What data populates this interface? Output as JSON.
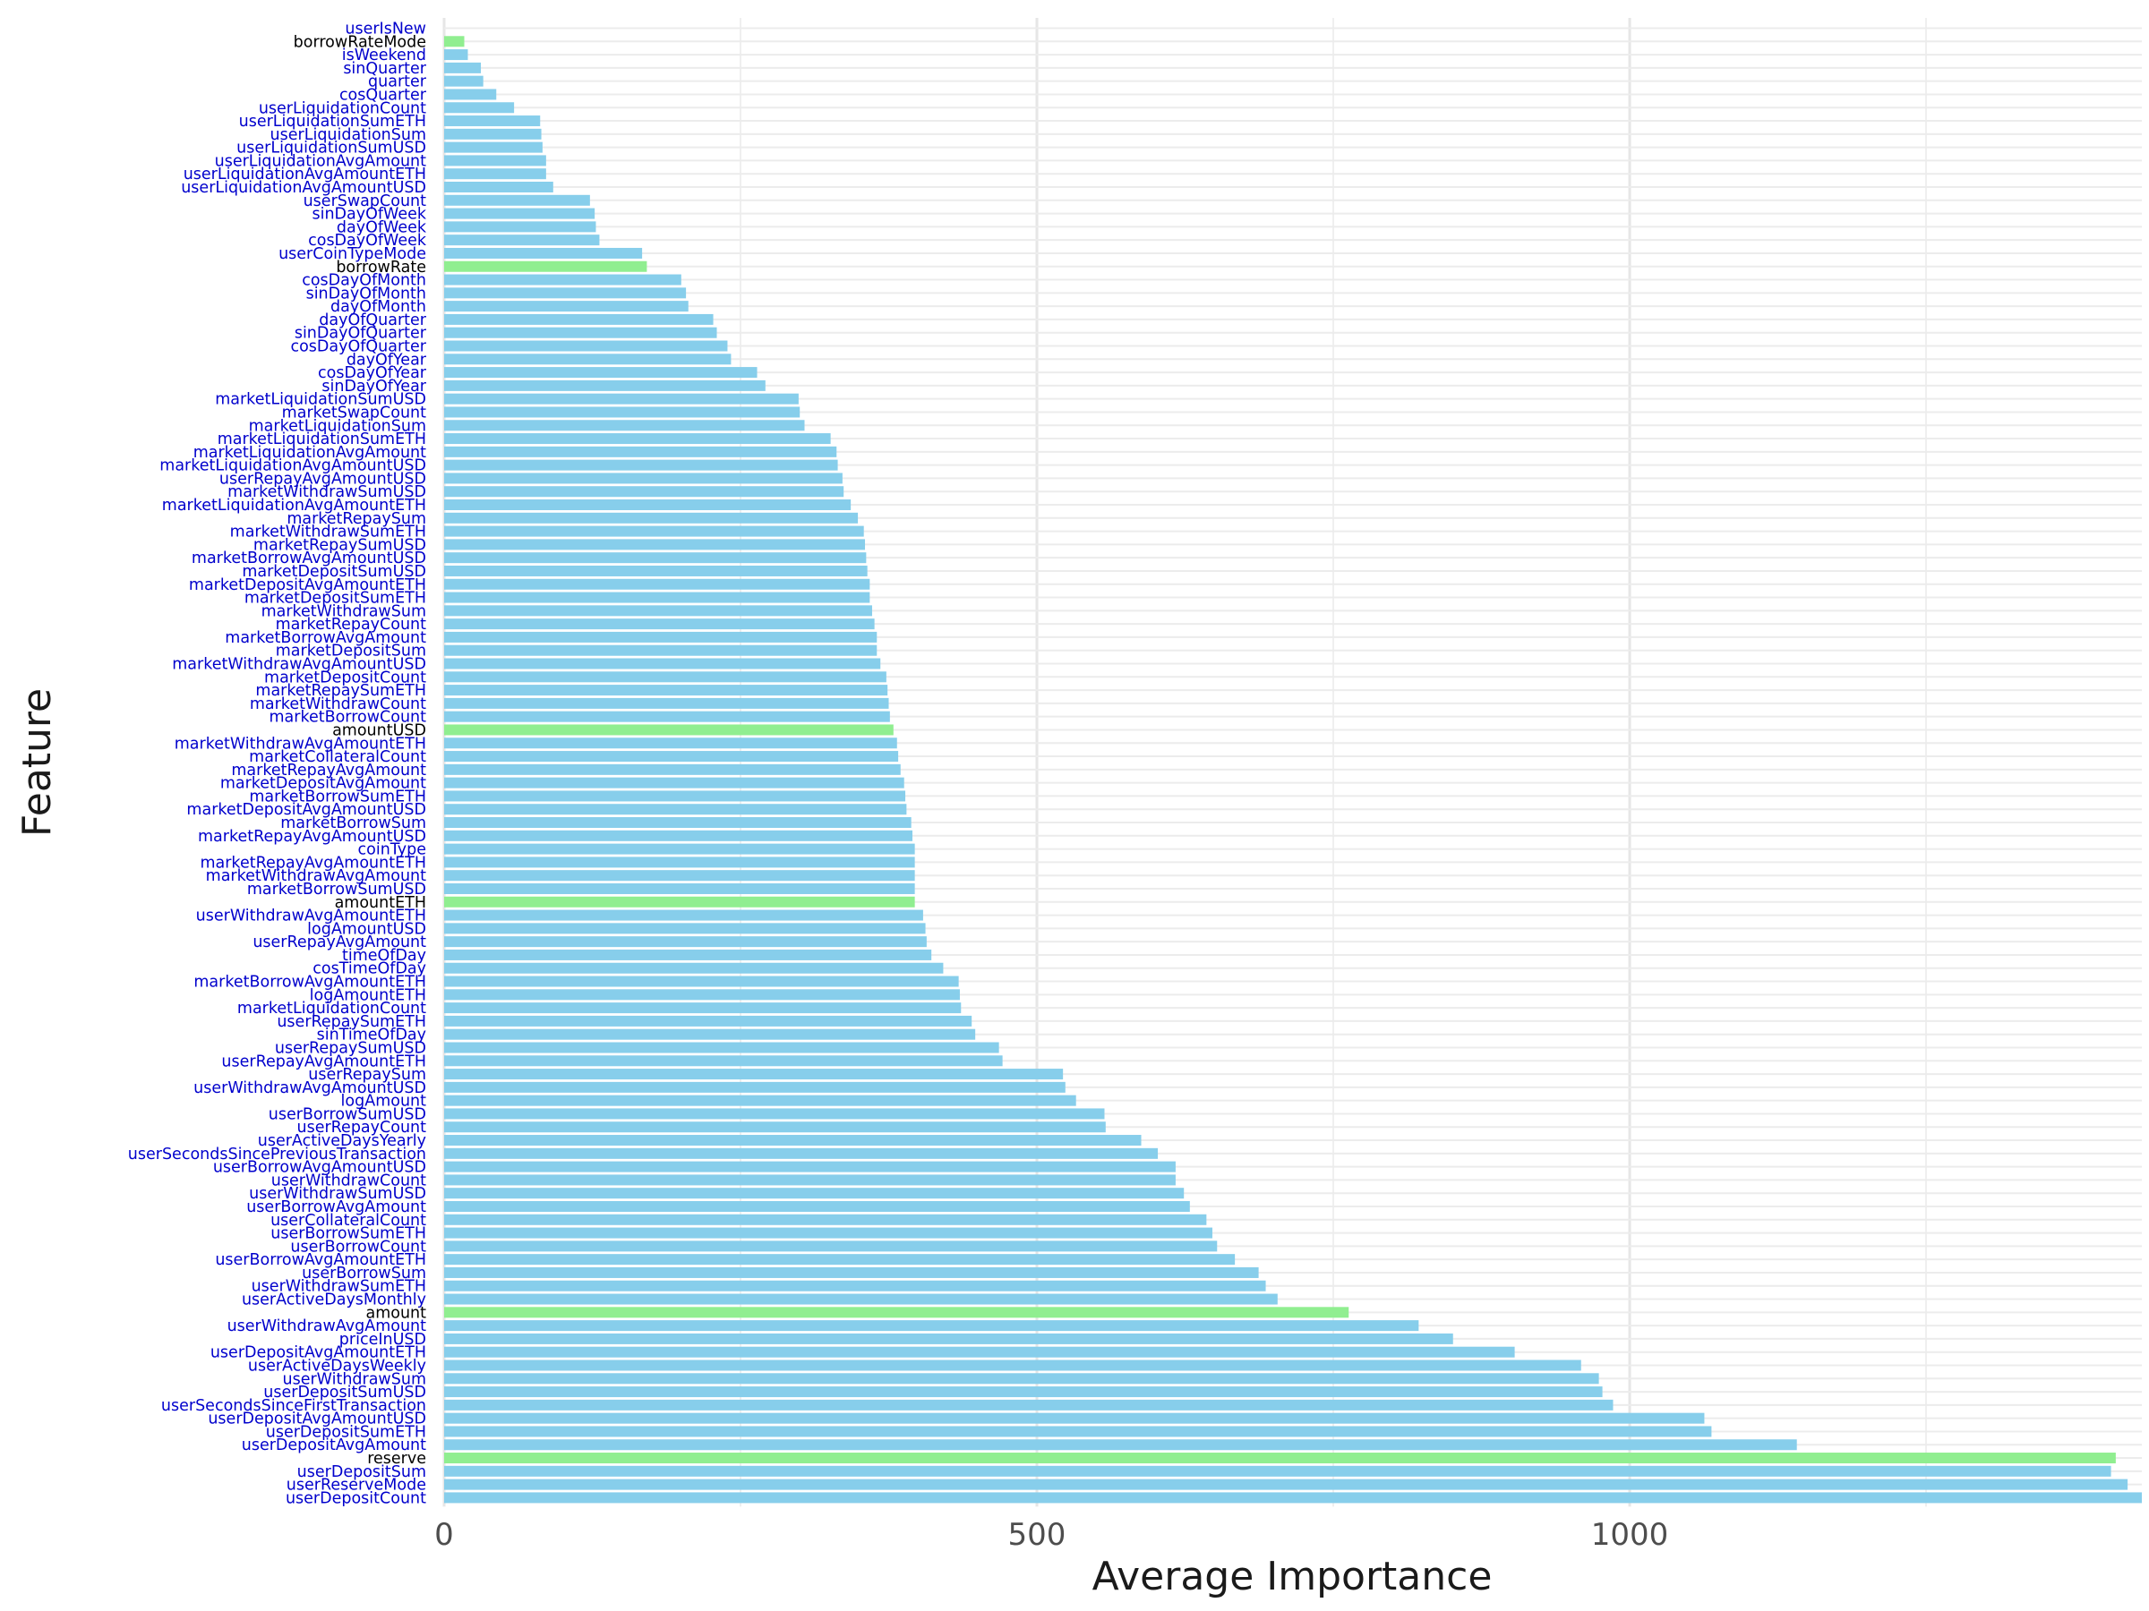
{
  "chart_data": {
    "type": "bar",
    "orientation": "horizontal",
    "xlabel": "Average Importance",
    "ylabel": "Feature",
    "xlim": [
      0,
      1432
    ],
    "xticks": [
      0,
      500,
      1000
    ],
    "grid": true,
    "colors": {
      "default": "#87CEEB",
      "highlight": "#90EE90",
      "label_default": "#0000CC",
      "label_highlight": "#000000"
    },
    "bars": [
      {
        "label": "userIsNew",
        "value": 0,
        "highlight": false
      },
      {
        "label": "borrowRateMode",
        "value": 17,
        "highlight": true
      },
      {
        "label": "isWeekend",
        "value": 20,
        "highlight": false
      },
      {
        "label": "sinQuarter",
        "value": 31,
        "highlight": false
      },
      {
        "label": "quarter",
        "value": 33,
        "highlight": false
      },
      {
        "label": "cosQuarter",
        "value": 44,
        "highlight": false
      },
      {
        "label": "userLiquidationCount",
        "value": 59,
        "highlight": false
      },
      {
        "label": "userLiquidationSumETH",
        "value": 81,
        "highlight": false
      },
      {
        "label": "userLiquidationSum",
        "value": 82,
        "highlight": false
      },
      {
        "label": "userLiquidationSumUSD",
        "value": 83,
        "highlight": false
      },
      {
        "label": "userLiquidationAvgAmount",
        "value": 86,
        "highlight": false
      },
      {
        "label": "userLiquidationAvgAmountETH",
        "value": 86,
        "highlight": false
      },
      {
        "label": "userLiquidationAvgAmountUSD",
        "value": 92,
        "highlight": false
      },
      {
        "label": "userSwapCount",
        "value": 123,
        "highlight": false
      },
      {
        "label": "sinDayOfWeek",
        "value": 127,
        "highlight": false
      },
      {
        "label": "dayOfWeek",
        "value": 128,
        "highlight": false
      },
      {
        "label": "cosDayOfWeek",
        "value": 131,
        "highlight": false
      },
      {
        "label": "userCoinTypeMode",
        "value": 167,
        "highlight": false
      },
      {
        "label": "borrowRate",
        "value": 171,
        "highlight": true
      },
      {
        "label": "cosDayOfMonth",
        "value": 200,
        "highlight": false
      },
      {
        "label": "sinDayOfMonth",
        "value": 204,
        "highlight": false
      },
      {
        "label": "dayOfMonth",
        "value": 206,
        "highlight": false
      },
      {
        "label": "dayOfQuarter",
        "value": 227,
        "highlight": false
      },
      {
        "label": "sinDayOfQuarter",
        "value": 230,
        "highlight": false
      },
      {
        "label": "cosDayOfQuarter",
        "value": 239,
        "highlight": false
      },
      {
        "label": "dayOfYear",
        "value": 242,
        "highlight": false
      },
      {
        "label": "cosDayOfYear",
        "value": 264,
        "highlight": false
      },
      {
        "label": "sinDayOfYear",
        "value": 271,
        "highlight": false
      },
      {
        "label": "marketLiquidationSumUSD",
        "value": 299,
        "highlight": false
      },
      {
        "label": "marketSwapCount",
        "value": 300,
        "highlight": false
      },
      {
        "label": "marketLiquidationSum",
        "value": 304,
        "highlight": false
      },
      {
        "label": "marketLiquidationSumETH",
        "value": 326,
        "highlight": false
      },
      {
        "label": "marketLiquidationAvgAmount",
        "value": 331,
        "highlight": false
      },
      {
        "label": "marketLiquidationAvgAmountUSD",
        "value": 332,
        "highlight": false
      },
      {
        "label": "userRepayAvgAmountUSD",
        "value": 336,
        "highlight": false
      },
      {
        "label": "marketWithdrawSumUSD",
        "value": 337,
        "highlight": false
      },
      {
        "label": "marketLiquidationAvgAmountETH",
        "value": 343,
        "highlight": false
      },
      {
        "label": "marketRepaySum",
        "value": 349,
        "highlight": false
      },
      {
        "label": "marketWithdrawSumETH",
        "value": 354,
        "highlight": false
      },
      {
        "label": "marketRepaySumUSD",
        "value": 355,
        "highlight": false
      },
      {
        "label": "marketBorrowAvgAmountUSD",
        "value": 356,
        "highlight": false
      },
      {
        "label": "marketDepositSumUSD",
        "value": 357,
        "highlight": false
      },
      {
        "label": "marketDepositAvgAmountETH",
        "value": 359,
        "highlight": false
      },
      {
        "label": "marketDepositSumETH",
        "value": 359,
        "highlight": false
      },
      {
        "label": "marketWithdrawSum",
        "value": 361,
        "highlight": false
      },
      {
        "label": "marketRepayCount",
        "value": 363,
        "highlight": false
      },
      {
        "label": "marketBorrowAvgAmount",
        "value": 365,
        "highlight": false
      },
      {
        "label": "marketDepositSum",
        "value": 365,
        "highlight": false
      },
      {
        "label": "marketWithdrawAvgAmountUSD",
        "value": 368,
        "highlight": false
      },
      {
        "label": "marketDepositCount",
        "value": 373,
        "highlight": false
      },
      {
        "label": "marketRepaySumETH",
        "value": 374,
        "highlight": false
      },
      {
        "label": "marketWithdrawCount",
        "value": 375,
        "highlight": false
      },
      {
        "label": "marketBorrowCount",
        "value": 376,
        "highlight": false
      },
      {
        "label": "amountUSD",
        "value": 379,
        "highlight": true
      },
      {
        "label": "marketWithdrawAvgAmountETH",
        "value": 382,
        "highlight": false
      },
      {
        "label": "marketCollateralCount",
        "value": 383,
        "highlight": false
      },
      {
        "label": "marketRepayAvgAmount",
        "value": 385,
        "highlight": false
      },
      {
        "label": "marketDepositAvgAmount",
        "value": 388,
        "highlight": false
      },
      {
        "label": "marketBorrowSumETH",
        "value": 389,
        "highlight": false
      },
      {
        "label": "marketDepositAvgAmountUSD",
        "value": 390,
        "highlight": false
      },
      {
        "label": "marketBorrowSum",
        "value": 394,
        "highlight": false
      },
      {
        "label": "marketRepayAvgAmountUSD",
        "value": 395,
        "highlight": false
      },
      {
        "label": "coinType",
        "value": 397,
        "highlight": false
      },
      {
        "label": "marketRepayAvgAmountETH",
        "value": 397,
        "highlight": false
      },
      {
        "label": "marketWithdrawAvgAmount",
        "value": 397,
        "highlight": false
      },
      {
        "label": "marketBorrowSumUSD",
        "value": 397,
        "highlight": false
      },
      {
        "label": "amountETH",
        "value": 397,
        "highlight": true
      },
      {
        "label": "userWithdrawAvgAmountETH",
        "value": 404,
        "highlight": false
      },
      {
        "label": "logAmountUSD",
        "value": 406,
        "highlight": false
      },
      {
        "label": "userRepayAvgAmount",
        "value": 407,
        "highlight": false
      },
      {
        "label": "timeOfDay",
        "value": 411,
        "highlight": false
      },
      {
        "label": "cosTimeOfDay",
        "value": 421,
        "highlight": false
      },
      {
        "label": "marketBorrowAvgAmountETH",
        "value": 434,
        "highlight": false
      },
      {
        "label": "logAmountETH",
        "value": 435,
        "highlight": false
      },
      {
        "label": "marketLiquidationCount",
        "value": 436,
        "highlight": false
      },
      {
        "label": "userRepaySumETH",
        "value": 445,
        "highlight": false
      },
      {
        "label": "sinTimeOfDay",
        "value": 448,
        "highlight": false
      },
      {
        "label": "userRepaySumUSD",
        "value": 468,
        "highlight": false
      },
      {
        "label": "userRepayAvgAmountETH",
        "value": 471,
        "highlight": false
      },
      {
        "label": "userRepaySum",
        "value": 522,
        "highlight": false
      },
      {
        "label": "userWithdrawAvgAmountUSD",
        "value": 524,
        "highlight": false
      },
      {
        "label": "logAmount",
        "value": 533,
        "highlight": false
      },
      {
        "label": "userBorrowSumUSD",
        "value": 557,
        "highlight": false
      },
      {
        "label": "userRepayCount",
        "value": 558,
        "highlight": false
      },
      {
        "label": "userActiveDaysYearly",
        "value": 588,
        "highlight": false
      },
      {
        "label": "userSecondsSincePreviousTransaction",
        "value": 602,
        "highlight": false
      },
      {
        "label": "userBorrowAvgAmountUSD",
        "value": 617,
        "highlight": false
      },
      {
        "label": "userWithdrawCount",
        "value": 617,
        "highlight": false
      },
      {
        "label": "userWithdrawSumUSD",
        "value": 624,
        "highlight": false
      },
      {
        "label": "userBorrowAvgAmount",
        "value": 629,
        "highlight": false
      },
      {
        "label": "userCollateralCount",
        "value": 643,
        "highlight": false
      },
      {
        "label": "userBorrowSumETH",
        "value": 648,
        "highlight": false
      },
      {
        "label": "userBorrowCount",
        "value": 652,
        "highlight": false
      },
      {
        "label": "userBorrowAvgAmountETH",
        "value": 667,
        "highlight": false
      },
      {
        "label": "userBorrowSum",
        "value": 687,
        "highlight": false
      },
      {
        "label": "userWithdrawSumETH",
        "value": 693,
        "highlight": false
      },
      {
        "label": "userActiveDaysMonthly",
        "value": 703,
        "highlight": false
      },
      {
        "label": "amount",
        "value": 763,
        "highlight": true
      },
      {
        "label": "userWithdrawAvgAmount",
        "value": 822,
        "highlight": false
      },
      {
        "label": "priceInUSD",
        "value": 851,
        "highlight": false
      },
      {
        "label": "userDepositAvgAmountETH",
        "value": 903,
        "highlight": false
      },
      {
        "label": "userActiveDaysWeekly",
        "value": 959,
        "highlight": false
      },
      {
        "label": "userWithdrawSum",
        "value": 974,
        "highlight": false
      },
      {
        "label": "userDepositSumUSD",
        "value": 977,
        "highlight": false
      },
      {
        "label": "userSecondsSinceFirstTransaction",
        "value": 986,
        "highlight": false
      },
      {
        "label": "userDepositAvgAmountUSD",
        "value": 1063,
        "highlight": false
      },
      {
        "label": "userDepositSumETH",
        "value": 1069,
        "highlight": false
      },
      {
        "label": "userDepositAvgAmount",
        "value": 1141,
        "highlight": false
      },
      {
        "label": "reserve",
        "value": 1410,
        "highlight": true
      },
      {
        "label": "userDepositSum",
        "value": 1406,
        "highlight": false
      },
      {
        "label": "userReserveMode",
        "value": 1420,
        "highlight": false
      },
      {
        "label": "userDepositCount",
        "value": 1432,
        "highlight": false
      }
    ]
  }
}
